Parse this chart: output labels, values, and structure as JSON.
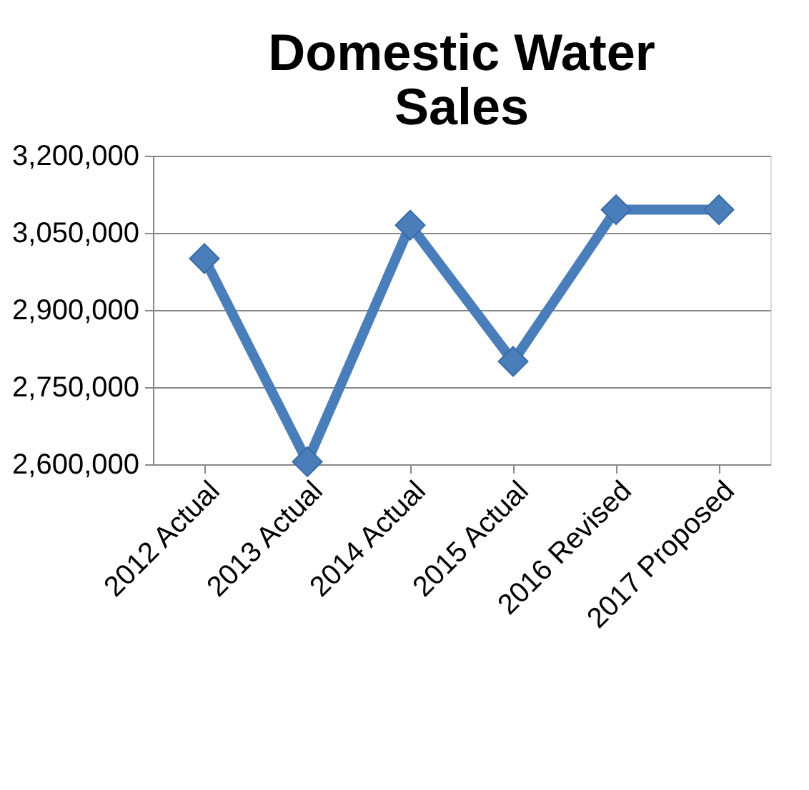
{
  "chart_data": {
    "type": "line",
    "title": "Domestic Water\nSales",
    "categories": [
      "2012 Actual",
      "2013 Actual",
      "2014 Actual",
      "2015 Actual",
      "2016 Revised",
      "2017 Proposed"
    ],
    "series": [
      {
        "color": "#4a7ebb",
        "values": [
          3000000,
          2605000,
          3065000,
          2800000,
          3095000,
          3095000
        ]
      }
    ],
    "ylim": [
      2600000,
      3200000
    ],
    "yticks": [
      {
        "value": 2600000,
        "label": "2,600,000"
      },
      {
        "value": 2750000,
        "label": "2,750,000"
      },
      {
        "value": 2900000,
        "label": "2,900,000"
      },
      {
        "value": 3050000,
        "label": "3,050,000"
      },
      {
        "value": 3200000,
        "label": "3,200,000"
      }
    ],
    "grid": "y",
    "marker": "diamond",
    "line_style": "solid"
  }
}
